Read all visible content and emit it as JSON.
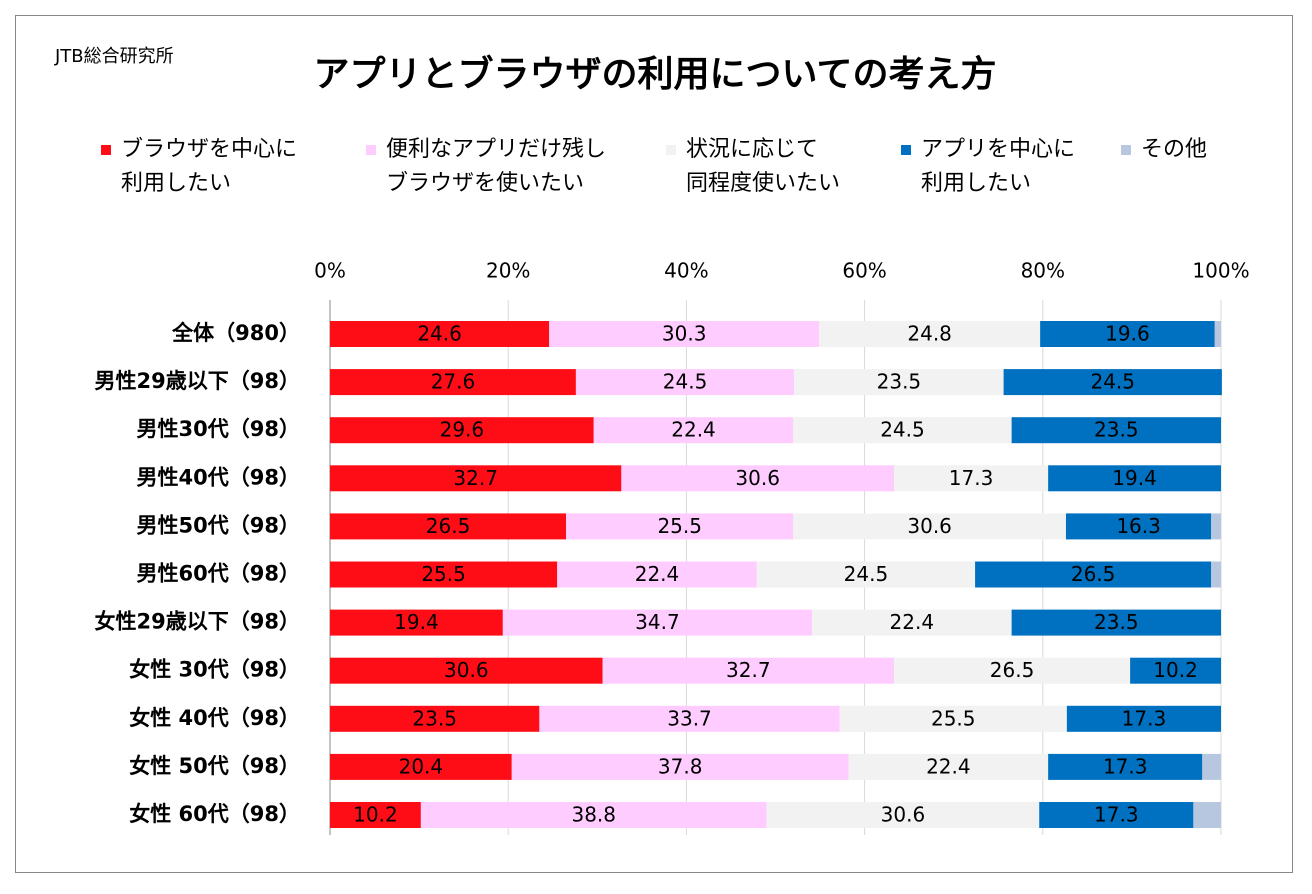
{
  "source": "JTB総合研究所",
  "chart_data": {
    "type": "bar",
    "orientation": "horizontal",
    "stacked": true,
    "title": "アプリとブラウザの利用についての考え方",
    "categories": [
      "全体（980）",
      "男性29歳以下（98）",
      "男性30代（98）",
      "男性40代（98）",
      "男性50代（98）",
      "男性60代（98）",
      "女性29歳以下（98）",
      "女性 30代（98）",
      "女性 40代（98）",
      "女性 50代（98）",
      "女性 60代（98）"
    ],
    "series": [
      {
        "name": "ブラウザを中心に\n利用したい",
        "color": "#ff0d16",
        "data_labels": true,
        "values": [
          24.6,
          27.6,
          29.6,
          32.7,
          26.5,
          25.5,
          19.4,
          30.6,
          23.5,
          20.4,
          10.2
        ]
      },
      {
        "name": "便利なアプリだけ残し\nブラウザを使いたい",
        "color": "#ffccff",
        "data_labels": true,
        "values": [
          30.3,
          24.5,
          22.4,
          30.6,
          25.5,
          22.4,
          34.7,
          32.7,
          33.7,
          37.8,
          38.8
        ]
      },
      {
        "name": "状況に応じて\n同程度使いたい",
        "color": "#f2f2f2",
        "data_labels": true,
        "values": [
          24.8,
          23.5,
          24.5,
          17.3,
          30.6,
          24.5,
          22.4,
          26.5,
          25.5,
          22.4,
          30.6
        ]
      },
      {
        "name": "アプリを中心に\n利用したい",
        "color": "#0070c0",
        "data_labels": true,
        "values": [
          19.6,
          24.5,
          23.5,
          19.4,
          16.3,
          26.5,
          23.5,
          10.2,
          17.3,
          17.3,
          17.3
        ]
      },
      {
        "name": "その他",
        "color": "#b8c7e0",
        "data_labels": false,
        "values": [
          0.7,
          0,
          0,
          0,
          1.1,
          1.1,
          0,
          0,
          0,
          2.1,
          3.1
        ]
      }
    ],
    "xlim": [
      0,
      100
    ],
    "xticks": [
      {
        "value": 0,
        "label": "0%"
      },
      {
        "value": 20,
        "label": "20%"
      },
      {
        "value": 40,
        "label": "40%"
      },
      {
        "value": 60,
        "label": "60%"
      },
      {
        "value": 80,
        "label": "80%"
      },
      {
        "value": 100,
        "label": "100%"
      }
    ],
    "grid": true
  }
}
